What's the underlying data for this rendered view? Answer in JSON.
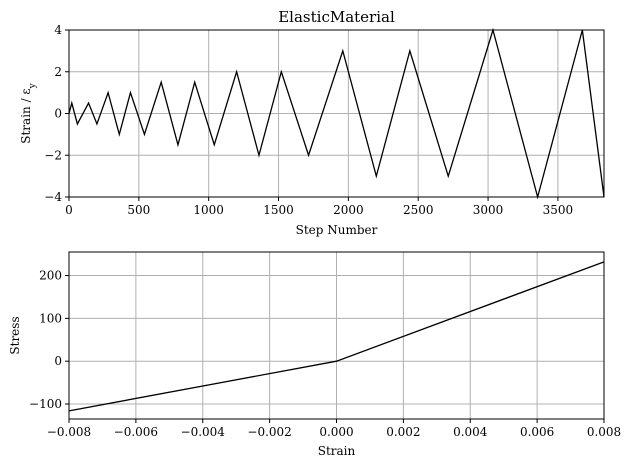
{
  "chart_data": [
    {
      "type": "line",
      "title": "ElasticMaterial",
      "xlabel": "Step Number",
      "ylabel": "Strain / ε_y",
      "xlim": [
        0,
        3830
      ],
      "ylim": [
        -4,
        4
      ],
      "grid": true,
      "xticks": [
        0,
        500,
        1000,
        1500,
        2000,
        2500,
        3000,
        3500
      ],
      "yticks": [
        -4,
        -2,
        0,
        2,
        4
      ],
      "xtick_labels": [
        "0",
        "500",
        "1000",
        "1500",
        "2000",
        "2500",
        "3000",
        "3500"
      ],
      "ytick_labels": [
        "−4",
        "−2",
        "0",
        "2",
        "4"
      ],
      "series": [
        {
          "x": [
            0,
            20,
            60,
            140,
            200,
            280,
            360,
            440,
            540,
            660,
            780,
            900,
            1040,
            1200,
            1360,
            1520,
            1715,
            1960,
            2200,
            2440,
            2715,
            3035,
            3355,
            3675,
            3830
          ],
          "y": [
            0,
            0.5,
            -0.5,
            0.5,
            -0.5,
            1,
            -1,
            1,
            -1,
            1.5,
            -1.5,
            1.5,
            -1.5,
            2,
            -2,
            2,
            -2,
            3,
            -3,
            3,
            -3,
            4,
            -4,
            4,
            -4
          ]
        }
      ]
    },
    {
      "type": "line",
      "title": "",
      "xlabel": "Strain",
      "ylabel": "Stress",
      "xlim": [
        -0.008,
        0.008
      ],
      "ylim": [
        -135,
        255
      ],
      "grid": true,
      "xticks": [
        -0.008,
        -0.006,
        -0.004,
        -0.002,
        0,
        0.002,
        0.004,
        0.006,
        0.008
      ],
      "yticks": [
        -100,
        0,
        100,
        200
      ],
      "xtick_labels": [
        "−0.008",
        "−0.006",
        "−0.004",
        "−0.002",
        "0.000",
        "0.002",
        "0.004",
        "0.006",
        "0.008"
      ],
      "ytick_labels": [
        "−100",
        "0",
        "100",
        "200"
      ],
      "series": [
        {
          "x": [
            -0.008,
            0,
            0.008
          ],
          "y": [
            -116,
            0,
            232
          ]
        }
      ]
    }
  ]
}
